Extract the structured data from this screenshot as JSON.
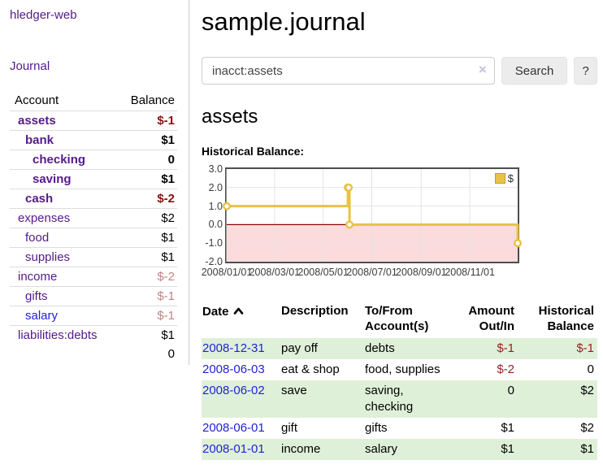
{
  "theme": {
    "link_purple": "#551a8b",
    "link_blue": "#2222d6",
    "negative_dark": "#8b1111",
    "negative": "#941f1f",
    "negative_muted": "#bd8585",
    "stripe_green": "#dff0d8",
    "chart_line_color": "#e8c245",
    "chart_negative_fill": "#fbdbdb",
    "chart_zero_line": "#8b0000"
  },
  "sidebar": {
    "brand": "hledger-web",
    "nav": {
      "journal": "Journal"
    },
    "accounts": {
      "headers": {
        "account": "Account",
        "balance": "Balance"
      },
      "rows": [
        {
          "name": "assets",
          "balance": "$-1",
          "depth": 0,
          "bold": true,
          "balance_color": "negative-dark",
          "link_color": "purple"
        },
        {
          "name": "bank",
          "balance": "$1",
          "depth": 1,
          "bold": true,
          "balance_color": "default",
          "link_color": "purple"
        },
        {
          "name": "checking",
          "balance": "0",
          "depth": 2,
          "bold": true,
          "balance_color": "default",
          "link_color": "purple"
        },
        {
          "name": "saving",
          "balance": "$1",
          "depth": 2,
          "bold": true,
          "balance_color": "default",
          "link_color": "purple"
        },
        {
          "name": "cash",
          "balance": "$-2",
          "depth": 1,
          "bold": true,
          "balance_color": "negative-dark",
          "link_color": "purple"
        },
        {
          "name": "expenses",
          "balance": "$2",
          "depth": 0,
          "bold": false,
          "balance_color": "default",
          "link_color": "purple"
        },
        {
          "name": "food",
          "balance": "$1",
          "depth": 1,
          "bold": false,
          "balance_color": "default",
          "link_color": "purple"
        },
        {
          "name": "supplies",
          "balance": "$1",
          "depth": 1,
          "bold": false,
          "balance_color": "default",
          "link_color": "purple"
        },
        {
          "name": "income",
          "balance": "$-2",
          "depth": 0,
          "bold": false,
          "balance_color": "negative-muted",
          "link_color": "purple"
        },
        {
          "name": "gifts",
          "balance": "$-1",
          "depth": 1,
          "bold": false,
          "balance_color": "negative-muted",
          "link_color": "purple"
        },
        {
          "name": "salary",
          "balance": "$-1",
          "depth": 1,
          "bold": false,
          "balance_color": "negative-muted",
          "link_color": "blue"
        },
        {
          "name": "liabilities:debts",
          "balance": "$1",
          "depth": 0,
          "bold": false,
          "balance_color": "default",
          "link_color": "purple"
        }
      ],
      "total": "0"
    }
  },
  "main": {
    "title": "sample.journal",
    "search": {
      "value": "inacct:assets",
      "clear_icon": "×",
      "search_button": "Search",
      "help_button": "?"
    },
    "account_heading": "assets",
    "chart_title": "Historical Balance:"
  },
  "chart_data": {
    "type": "line",
    "step": true,
    "title": "Historical Balance",
    "x_range": [
      "2008-01-01",
      "2008-12-31"
    ],
    "ylim": [
      -2,
      3
    ],
    "ytick_labels": [
      "3.0",
      "2.0",
      "1.0",
      "0.0",
      "-1.0",
      "-2.0"
    ],
    "xtick_labels": [
      "2008/01/01",
      "2008/03/01",
      "2008/05/01",
      "2008/07/01",
      "2008/09/01",
      "2008/11/01"
    ],
    "grid": true,
    "legend": {
      "label": "$",
      "position": "top-right"
    },
    "series": [
      {
        "name": "$",
        "points": [
          [
            "2008-01-01",
            1
          ],
          [
            "2008-06-01",
            2
          ],
          [
            "2008-06-02",
            2
          ],
          [
            "2008-06-03",
            0
          ],
          [
            "2008-12-31",
            -1
          ]
        ]
      }
    ]
  },
  "register": {
    "headers": {
      "date": "Date",
      "sort": "ascending",
      "description": "Description",
      "account": [
        "To/From",
        "Account(s)"
      ],
      "amount": [
        "Amount",
        "Out/In"
      ],
      "balance": [
        "Historical",
        "Balance"
      ]
    },
    "rows": [
      {
        "date": "2008-12-31",
        "description": "pay off",
        "accounts": [
          "debts"
        ],
        "amount": "$-1",
        "amount_negative": true,
        "balance": "$-1",
        "balance_negative": true
      },
      {
        "date": "2008-06-03",
        "description": "eat & shop",
        "accounts": [
          "food, supplies"
        ],
        "amount": "$-2",
        "amount_negative": true,
        "balance": "0",
        "balance_negative": false
      },
      {
        "date": "2008-06-02",
        "description": "save",
        "accounts": [
          "saving,",
          "checking"
        ],
        "amount": "0",
        "amount_negative": false,
        "balance": "$2",
        "balance_negative": false
      },
      {
        "date": "2008-06-01",
        "description": "gift",
        "accounts": [
          "gifts"
        ],
        "amount": "$1",
        "amount_negative": false,
        "balance": "$2",
        "balance_negative": false
      },
      {
        "date": "2008-01-01",
        "description": "income",
        "accounts": [
          "salary"
        ],
        "amount": "$1",
        "amount_negative": false,
        "balance": "$1",
        "balance_negative": false
      }
    ]
  }
}
